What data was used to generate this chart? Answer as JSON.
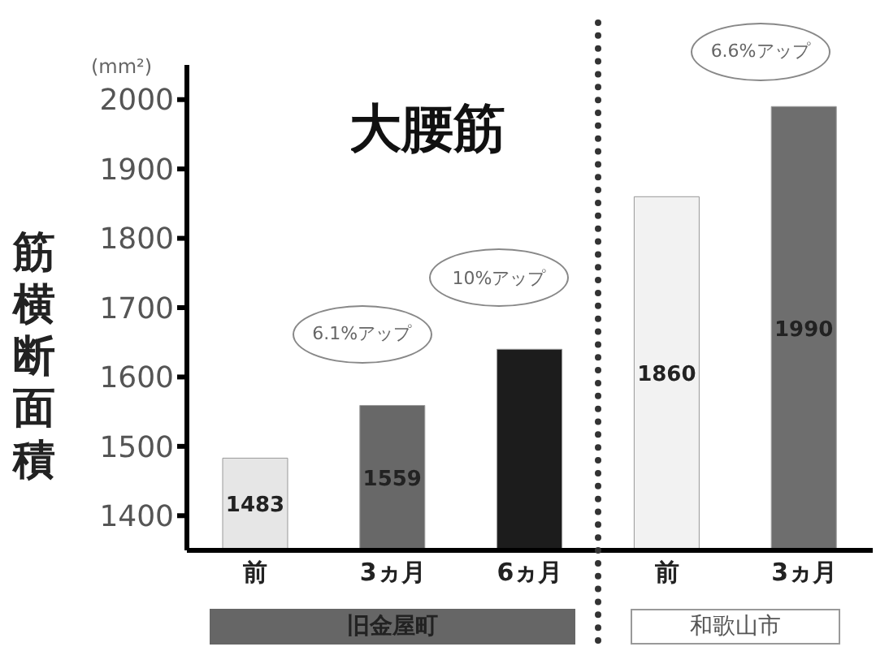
{
  "chart_data": {
    "type": "bar",
    "title": "大腰筋",
    "ylabel": "筋横断面積",
    "categories": [
      "前",
      "3ヵ月",
      "6ヵ月",
      "前",
      "3ヵ月"
    ],
    "values": [
      1483,
      1559,
      1640,
      1860,
      1990
    ],
    "colors": [
      "#e6e6e6",
      "#686868",
      "#1c1c1c",
      "#f2f2f2",
      "#6e6e6e"
    ],
    "value_labels": [
      "1483",
      "1559",
      null,
      "1860",
      "1990"
    ],
    "ylim": [
      1350,
      2050
    ],
    "yticks": [
      1400,
      1500,
      1600,
      1700,
      1800,
      1900,
      2000
    ],
    "annotations": [
      "(mm²)",
      "6.1%アップ",
      "10%アップ",
      "6.6%アップ",
      "旧金屋町",
      "和歌山市"
    ]
  }
}
